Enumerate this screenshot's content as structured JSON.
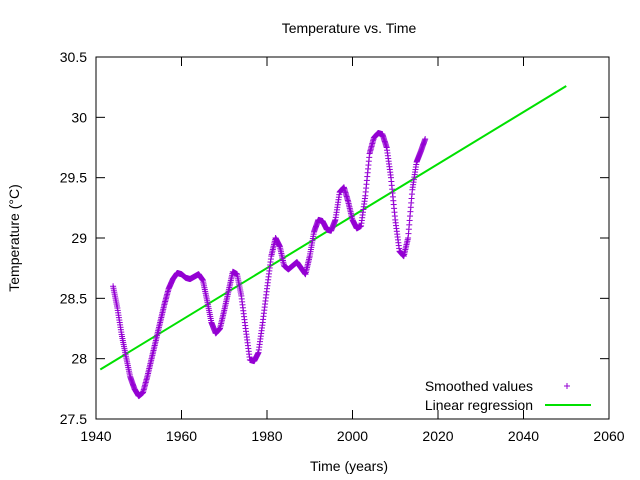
{
  "chart_data": {
    "type": "scatter",
    "title": "Temperature vs. Time",
    "xlabel": "Time (years)",
    "ylabel": "Temperature (°C)",
    "xlim": [
      1940,
      2060
    ],
    "ylim": [
      27.5,
      30.5
    ],
    "xticks": [
      1940,
      1960,
      1980,
      2000,
      2020,
      2040,
      2060
    ],
    "yticks": [
      27.5,
      28,
      28.5,
      29,
      29.5,
      30,
      30.5
    ],
    "xtick_labels": [
      "1940",
      "1960",
      "1980",
      "2000",
      "2020",
      "2040",
      "2060"
    ],
    "ytick_labels": [
      "27.5",
      "28",
      "28.5",
      "29",
      "29.5",
      "30",
      "30.5"
    ],
    "grid": false,
    "legend_position": "bottom-right",
    "series": [
      {
        "name": "Smoothed values",
        "type": "scatter",
        "marker": "plus",
        "color": "#9400d3",
        "x": [
          1944,
          1945,
          1946,
          1947,
          1948,
          1949,
          1950,
          1951,
          1952,
          1953,
          1954,
          1955,
          1956,
          1957,
          1958,
          1959,
          1960,
          1961,
          1962,
          1963,
          1964,
          1965,
          1966,
          1967,
          1968,
          1969,
          1970,
          1971,
          1972,
          1973,
          1974,
          1975,
          1976,
          1977,
          1978,
          1979,
          1980,
          1981,
          1982,
          1983,
          1984,
          1985,
          1986,
          1987,
          1988,
          1989,
          1990,
          1991,
          1992,
          1993,
          1994,
          1995,
          1996,
          1997,
          1998,
          1999,
          2000,
          2001,
          2002,
          2003,
          2004,
          2005,
          2006,
          2007,
          2008,
          2009,
          2010,
          2011,
          2012,
          2013,
          2014,
          2015,
          2016,
          2017
        ],
        "y": [
          28.6,
          28.42,
          28.2,
          28.02,
          27.85,
          27.75,
          27.69,
          27.72,
          27.85,
          28.0,
          28.15,
          28.3,
          28.45,
          28.58,
          28.66,
          28.71,
          28.7,
          28.67,
          28.66,
          28.68,
          28.7,
          28.65,
          28.48,
          28.3,
          28.21,
          28.25,
          28.4,
          28.56,
          28.72,
          28.7,
          28.52,
          28.25,
          27.99,
          27.98,
          28.05,
          28.3,
          28.58,
          28.85,
          29.0,
          28.93,
          28.77,
          28.74,
          28.77,
          28.8,
          28.75,
          28.7,
          28.85,
          29.05,
          29.15,
          29.14,
          29.07,
          29.06,
          29.15,
          29.38,
          29.42,
          29.3,
          29.15,
          29.08,
          29.1,
          29.35,
          29.7,
          29.83,
          29.87,
          29.86,
          29.75,
          29.5,
          29.15,
          28.89,
          28.85,
          29.0,
          29.4,
          29.63,
          29.72,
          29.82
        ]
      },
      {
        "name": "Linear regression",
        "type": "line",
        "color": "#00e000",
        "x": [
          1941,
          2050
        ],
        "y": [
          27.91,
          30.26
        ]
      }
    ]
  }
}
